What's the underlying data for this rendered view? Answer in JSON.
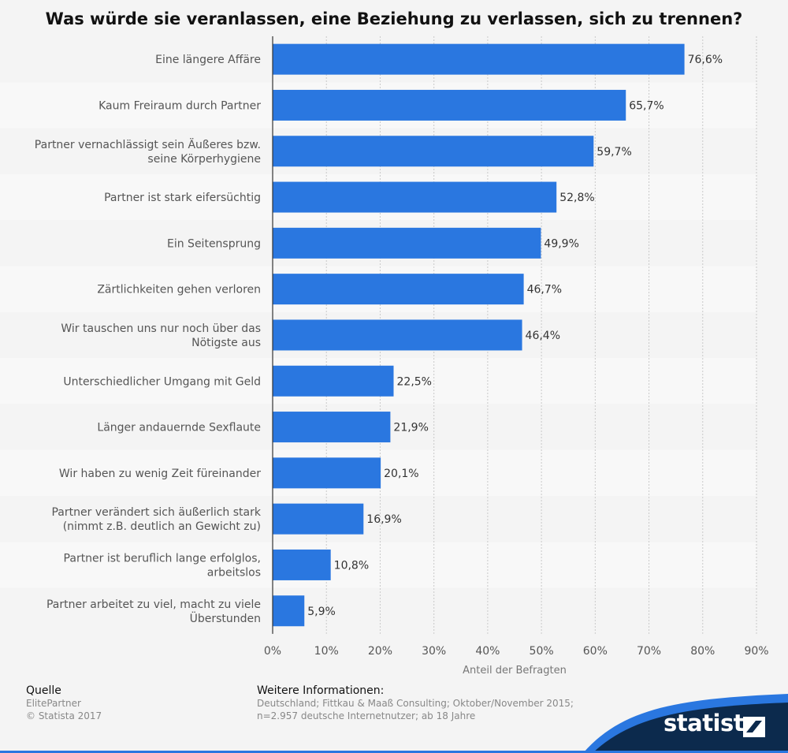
{
  "chart_data": {
    "type": "bar",
    "orientation": "horizontal",
    "title": "Was würde sie veranlassen, eine Beziehung zu verlassen, sich zu trennen?",
    "xlabel": "Anteil der Befragten",
    "xlim": [
      0,
      90
    ],
    "ticks": [
      "0%",
      "10%",
      "20%",
      "30%",
      "40%",
      "50%",
      "60%",
      "70%",
      "80%",
      "90%"
    ],
    "grid": true,
    "bar_color": "#2a77e0",
    "categories": [
      [
        "Eine längere Affäre"
      ],
      [
        "Kaum Freiraum durch Partner"
      ],
      [
        "Partner vernachlässigt sein Äußeres bzw.",
        "seine Körperhygiene"
      ],
      [
        "Partner ist stark eifersüchtig"
      ],
      [
        "Ein Seitensprung"
      ],
      [
        "Zärtlichkeiten gehen verloren"
      ],
      [
        "Wir tauschen uns nur noch über das",
        "Nötigste aus"
      ],
      [
        "Unterschiedlicher Umgang mit Geld"
      ],
      [
        "Länger andauernde Sexflaute"
      ],
      [
        "Wir haben zu wenig Zeit füreinander"
      ],
      [
        "Partner verändert sich äußerlich stark",
        "(nimmt z.B. deutlich an Gewicht zu)"
      ],
      [
        "Partner ist beruflich lange erfolglos,",
        "arbeitslos"
      ],
      [
        "Partner arbeitet zu viel, macht zu viele",
        "Überstunden"
      ]
    ],
    "values": [
      76.6,
      65.7,
      59.7,
      52.8,
      49.9,
      46.7,
      46.4,
      22.5,
      21.9,
      20.1,
      16.9,
      10.8,
      5.9
    ],
    "value_labels": [
      "76,6%",
      "65,7%",
      "59,7%",
      "52,8%",
      "49,9%",
      "46,7%",
      "46,4%",
      "22,5%",
      "21,9%",
      "20,1%",
      "16,9%",
      "10,8%",
      "5,9%"
    ]
  },
  "footer": {
    "source_heading": "Quelle",
    "source_lines": [
      "ElitePartner",
      "© Statista 2017"
    ],
    "info_heading": "Weitere Informationen:",
    "info_lines": [
      "Deutschland; Fittkau & Maaß Consulting; Oktober/November 2015;",
      "n=2.957 deutsche Internetnutzer; ab 18 Jahre"
    ]
  },
  "brand": "statista",
  "colors": {
    "background": "#f4f4f4",
    "bar": "#2a77e0",
    "brand_dark": "#0c2a4d",
    "brand_accent": "#2a77e0"
  }
}
